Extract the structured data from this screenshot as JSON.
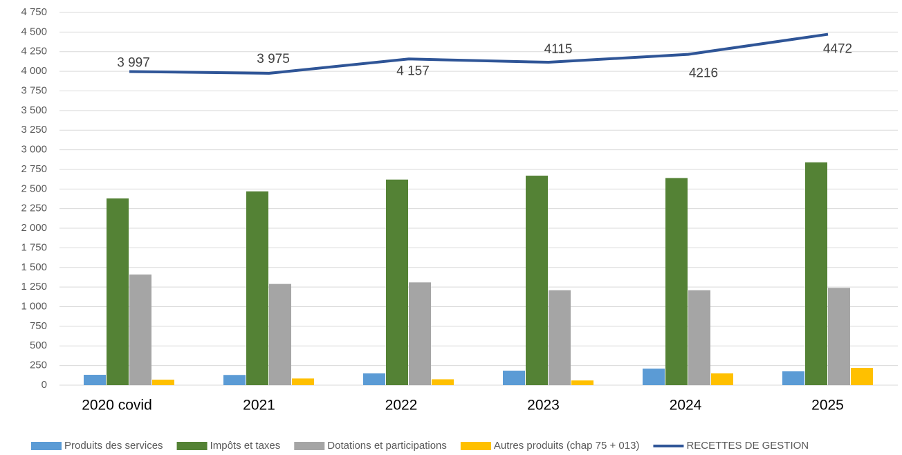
{
  "chart_data": {
    "type": "bar",
    "categories": [
      "2020 covid",
      "2021",
      "2022",
      "2023",
      "2024",
      "2025"
    ],
    "ylim": [
      0,
      4750
    ],
    "yticks": [
      0,
      250,
      500,
      750,
      {
        "value": 1000,
        "label": "1 000"
      },
      {
        "value": 1250,
        "label": "1 250"
      },
      {
        "value": 1500,
        "label": "1 500"
      },
      {
        "value": 1750,
        "label": "1 750"
      },
      {
        "value": 2000,
        "label": "2 000"
      },
      {
        "value": 2250,
        "label": "2 250"
      },
      {
        "value": 2500,
        "label": "2 500"
      },
      {
        "value": 2750,
        "label": "2 750"
      },
      {
        "value": 3000,
        "label": "3 000"
      },
      {
        "value": 3250,
        "label": "3 250"
      },
      {
        "value": 3500,
        "label": "3 500"
      },
      {
        "value": 3750,
        "label": "3 750"
      },
      {
        "value": 4000,
        "label": "4 000"
      },
      {
        "value": 4250,
        "label": "4 250"
      },
      {
        "value": 4500,
        "label": "4 500"
      },
      {
        "value": 4750,
        "label": "4 750"
      }
    ],
    "grid": true,
    "legend": "bottom",
    "series": [
      {
        "name": "Produits des services",
        "type": "bar",
        "color": "#5b9bd5",
        "values": [
          132,
          130,
          150,
          185,
          211,
          176
        ]
      },
      {
        "name": "Impôts et taxes",
        "type": "bar",
        "color": "#548235",
        "values": [
          2380,
          2470,
          2620,
          2670,
          2640,
          2840
        ]
      },
      {
        "name": "Dotations et participations",
        "type": "bar",
        "color": "#a5a5a5",
        "values": [
          1410,
          1290,
          1310,
          1210,
          1210,
          1240
        ]
      },
      {
        "name": "Autres produits (chap 75 + 013)",
        "type": "bar",
        "color": "#ffc000",
        "values": [
          70,
          85,
          75,
          60,
          150,
          220
        ]
      },
      {
        "name": "RECETTES DE GESTION",
        "type": "line",
        "color": "#2f5597",
        "values": [
          3997,
          3975,
          4157,
          4115,
          4216,
          4472
        ],
        "value_labels": [
          "3 997",
          "3 975",
          "4 157",
          "4115",
          "4216",
          "4472"
        ]
      }
    ]
  }
}
